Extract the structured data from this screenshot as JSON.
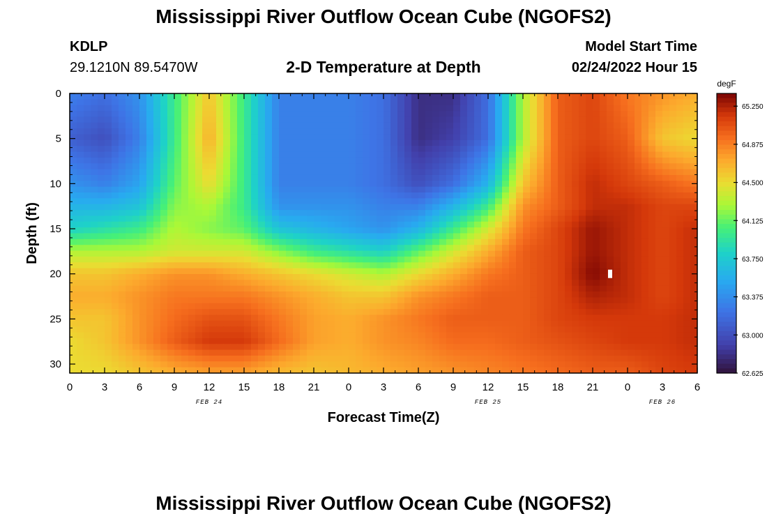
{
  "page": {
    "title": "Mississippi River Outflow Ocean Cube (NGOFS2)",
    "title_repeat": "Mississippi River Outflow Ocean Cube (NGOFS2)",
    "station": "KDLP",
    "coordinates": "29.1210N  89.5470W",
    "subtitle": "2-D Temperature at Depth",
    "model_start_label": "Model Start Time",
    "model_start_value": "02/24/2022 Hour 15"
  },
  "chart_data": {
    "type": "heatmap",
    "title": "2-D Temperature at Depth",
    "xlabel": "Forecast Time(Z)",
    "ylabel": "Depth (ft)",
    "colorbar_label": "degF",
    "x_tick_labels": [
      "0",
      "3",
      "6",
      "9",
      "12",
      "15",
      "18",
      "21",
      "0",
      "3",
      "6",
      "9",
      "12",
      "15",
      "18",
      "21",
      "0",
      "3",
      "6"
    ],
    "x_hours": [
      0,
      3,
      6,
      9,
      12,
      15,
      18,
      21,
      24,
      27,
      30,
      33,
      36,
      39,
      42,
      45,
      48,
      51,
      54
    ],
    "date_labels": [
      {
        "label": "FEB 24",
        "hour": 12
      },
      {
        "label": "FEB 25",
        "hour": 36
      },
      {
        "label": "FEB 26",
        "hour": 51
      }
    ],
    "y_ticks": [
      0,
      5,
      10,
      15,
      20,
      25,
      30
    ],
    "ylim": [
      0,
      31
    ],
    "y_inverted": true,
    "colorbar_ticks": [
      65.25,
      64.875,
      64.5,
      64.125,
      63.75,
      63.375,
      63.0,
      62.625
    ],
    "colorbar_tick_labels": [
      "65.250",
      "64.875",
      "64.500",
      "64.125",
      "63.750",
      "63.375",
      "63.000",
      "62.625"
    ],
    "value_range": [
      62.625,
      65.375
    ],
    "depths_ft": [
      0,
      5,
      10,
      12.5,
      15,
      17.5,
      20,
      22.5,
      25,
      27.5,
      31
    ],
    "times_hours": [
      0,
      3,
      6,
      9,
      12,
      15,
      18,
      21,
      24,
      27,
      30,
      33,
      36,
      39,
      42,
      45,
      48,
      51,
      54
    ],
    "temperature_degF": [
      [
        63.3,
        63.2,
        63.4,
        64.0,
        64.6,
        64.0,
        63.3,
        63.3,
        63.3,
        63.2,
        62.8,
        62.8,
        63.2,
        64.3,
        65.0,
        65.1,
        64.9,
        64.8,
        64.7
      ],
      [
        63.1,
        63.0,
        63.3,
        64.0,
        64.7,
        64.0,
        63.3,
        63.3,
        63.3,
        63.2,
        62.8,
        62.9,
        63.2,
        64.3,
        65.0,
        65.1,
        65.0,
        64.6,
        64.5
      ],
      [
        63.4,
        63.3,
        63.5,
        64.1,
        64.5,
        64.0,
        63.3,
        63.3,
        63.3,
        63.2,
        63.0,
        63.2,
        63.6,
        64.6,
        65.0,
        65.2,
        65.1,
        65.0,
        64.9
      ],
      [
        63.6,
        63.6,
        63.7,
        64.2,
        64.3,
        64.0,
        63.4,
        63.4,
        63.4,
        63.3,
        63.3,
        63.6,
        64.0,
        64.8,
        65.0,
        65.2,
        65.2,
        65.1,
        65.1
      ],
      [
        63.8,
        63.9,
        64.0,
        64.3,
        64.2,
        64.1,
        63.7,
        63.6,
        63.5,
        63.4,
        63.6,
        64.0,
        64.4,
        64.9,
        65.1,
        65.3,
        65.2,
        65.1,
        65.2
      ],
      [
        64.3,
        64.3,
        64.3,
        64.4,
        64.4,
        64.4,
        64.2,
        64.0,
        63.9,
        63.8,
        64.1,
        64.4,
        64.7,
        65.0,
        65.1,
        65.3,
        65.2,
        65.1,
        65.2
      ],
      [
        64.6,
        64.6,
        64.7,
        64.8,
        64.8,
        64.7,
        64.6,
        64.5,
        64.4,
        64.3,
        64.5,
        64.7,
        64.9,
        65.0,
        65.1,
        65.35,
        65.2,
        65.1,
        65.2
      ],
      [
        64.7,
        64.7,
        64.8,
        64.9,
        64.9,
        64.9,
        64.8,
        64.7,
        64.6,
        64.6,
        64.8,
        64.9,
        65.0,
        65.0,
        65.1,
        65.25,
        65.2,
        65.1,
        65.2
      ],
      [
        64.6,
        64.6,
        64.8,
        64.95,
        65.05,
        65.05,
        64.9,
        64.75,
        64.7,
        64.8,
        64.9,
        65.0,
        65.0,
        65.0,
        65.1,
        65.15,
        65.15,
        65.15,
        65.2
      ],
      [
        64.5,
        64.6,
        64.8,
        65.0,
        65.15,
        65.15,
        64.95,
        64.75,
        64.7,
        64.8,
        64.85,
        64.95,
        64.95,
        65.0,
        65.05,
        65.1,
        65.15,
        65.15,
        65.2
      ],
      [
        64.5,
        64.5,
        64.6,
        64.7,
        64.75,
        64.75,
        64.65,
        64.6,
        64.65,
        64.7,
        64.75,
        64.8,
        64.85,
        64.9,
        64.95,
        65.0,
        65.0,
        65.1,
        65.15
      ]
    ],
    "missing_marker": {
      "hour": 46.5,
      "depth_ft": 20
    },
    "grid": false,
    "legend": "colorbar-right"
  }
}
